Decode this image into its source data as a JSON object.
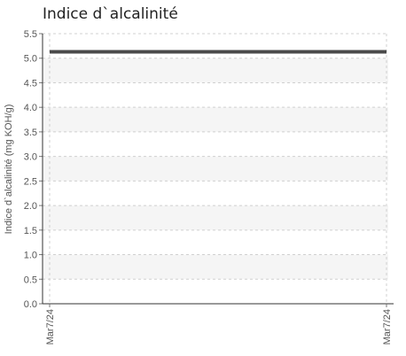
{
  "chart_data": {
    "type": "line",
    "title": "Indice d`alcalinité",
    "xlabel": "",
    "ylabel": "Indice d`alcalinité (mg KOH/g)",
    "x": [
      "Mar7/24",
      "Mar7/24"
    ],
    "series": [
      {
        "values": [
          5.13,
          5.13
        ]
      }
    ],
    "ylim": [
      0.0,
      5.5
    ],
    "yticks": [
      "0.0",
      "0.5",
      "1.0",
      "1.5",
      "2.0",
      "2.5",
      "3.0",
      "3.5",
      "4.0",
      "4.5",
      "5.0",
      "5.5"
    ],
    "xtick_labels": [
      "Mar7/24",
      "Mar7/24"
    ],
    "grid": true,
    "legend": "none",
    "colors": {
      "line": "#4a4a4a",
      "band": "#f5f5f5",
      "grid": "#d0d0d0",
      "axis": "#333333"
    }
  }
}
